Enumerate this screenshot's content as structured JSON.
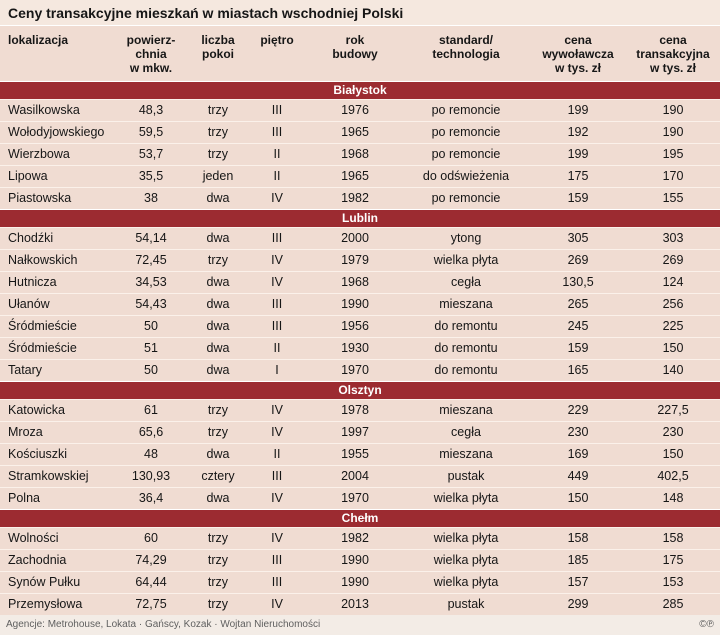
{
  "title": "Ceny transakcyjne mieszkań w miastach wschodniej Polski",
  "footer": {
    "credits": "Agencje: Metrohouse, Lokata · Gańscy, Kozak · Wojtan Nieruchomości",
    "copyright": "©℗"
  },
  "colors": {
    "background": "#f0dcd2",
    "section_bar": "#9c2b31",
    "section_text": "#ffffff",
    "body_text": "#161616",
    "footer_text": "#5f5f5f"
  },
  "chart_data": {
    "type": "table",
    "title": "Ceny transakcyjne mieszkań w miastach wschodniej Polski",
    "columns": [
      "lokalizacja",
      "powierz-\nchnia\nw mkw.",
      "liczba\npokoi",
      "piętro",
      "rok\nbudowy",
      "standard/\ntechnologia",
      "cena\nwywoławcza\nw tys. zł",
      "cena\ntransakcyjna\nw tys. zł"
    ],
    "sections": [
      {
        "name": "Białystok",
        "rows": [
          [
            "Wasilkowska",
            "48,3",
            "trzy",
            "III",
            "1976",
            "po remoncie",
            "199",
            "190"
          ],
          [
            "Wołodyjowskiego",
            "59,5",
            "trzy",
            "III",
            "1965",
            "po remoncie",
            "192",
            "190"
          ],
          [
            "Wierzbowa",
            "53,7",
            "trzy",
            "II",
            "1968",
            "po remoncie",
            "199",
            "195"
          ],
          [
            "Lipowa",
            "35,5",
            "jeden",
            "II",
            "1965",
            "do odświeżenia",
            "175",
            "170"
          ],
          [
            "Piastowska",
            "38",
            "dwa",
            "IV",
            "1982",
            "po remoncie",
            "159",
            "155"
          ]
        ]
      },
      {
        "name": "Lublin",
        "rows": [
          [
            "Chodźki",
            "54,14",
            "dwa",
            "III",
            "2000",
            "ytong",
            "305",
            "303"
          ],
          [
            "Nałkowskich",
            "72,45",
            "trzy",
            "IV",
            "1979",
            "wielka płyta",
            "269",
            "269"
          ],
          [
            "Hutnicza",
            "34,53",
            "dwa",
            "IV",
            "1968",
            "cegła",
            "130,5",
            "124"
          ],
          [
            "Ułanów",
            "54,43",
            "dwa",
            "III",
            "1990",
            "mieszana",
            "265",
            "256"
          ],
          [
            "Śródmieście",
            "50",
            "dwa",
            "III",
            "1956",
            "do remontu",
            "245",
            "225"
          ],
          [
            "Śródmieście",
            "51",
            "dwa",
            "II",
            "1930",
            "do remontu",
            "159",
            "150"
          ],
          [
            "Tatary",
            "50",
            "dwa",
            "I",
            "1970",
            "do remontu",
            "165",
            "140"
          ]
        ]
      },
      {
        "name": "Olsztyn",
        "rows": [
          [
            "Katowicka",
            "61",
            "trzy",
            "IV",
            "1978",
            "mieszana",
            "229",
            "227,5"
          ],
          [
            "Mroza",
            "65,6",
            "trzy",
            "IV",
            "1997",
            "cegła",
            "230",
            "230"
          ],
          [
            "Kościuszki",
            "48",
            "dwa",
            "II",
            "1955",
            "mieszana",
            "169",
            "150"
          ],
          [
            "Stramkowskiej",
            "130,93",
            "cztery",
            "III",
            "2004",
            "pustak",
            "449",
            "402,5"
          ],
          [
            "Polna",
            "36,4",
            "dwa",
            "IV",
            "1970",
            "wielka płyta",
            "150",
            "148"
          ]
        ]
      },
      {
        "name": "Chełm",
        "rows": [
          [
            "Wolności",
            "60",
            "trzy",
            "IV",
            "1982",
            "wielka płyta",
            "158",
            "158"
          ],
          [
            "Zachodnia",
            "74,29",
            "trzy",
            "III",
            "1990",
            "wielka płyta",
            "185",
            "175"
          ],
          [
            "Synów Pułku",
            "64,44",
            "trzy",
            "III",
            "1990",
            "wielka płyta",
            "157",
            "153"
          ],
          [
            "Przemysłowa",
            "72,75",
            "trzy",
            "IV",
            "2013",
            "pustak",
            "299",
            "285"
          ]
        ]
      }
    ]
  }
}
